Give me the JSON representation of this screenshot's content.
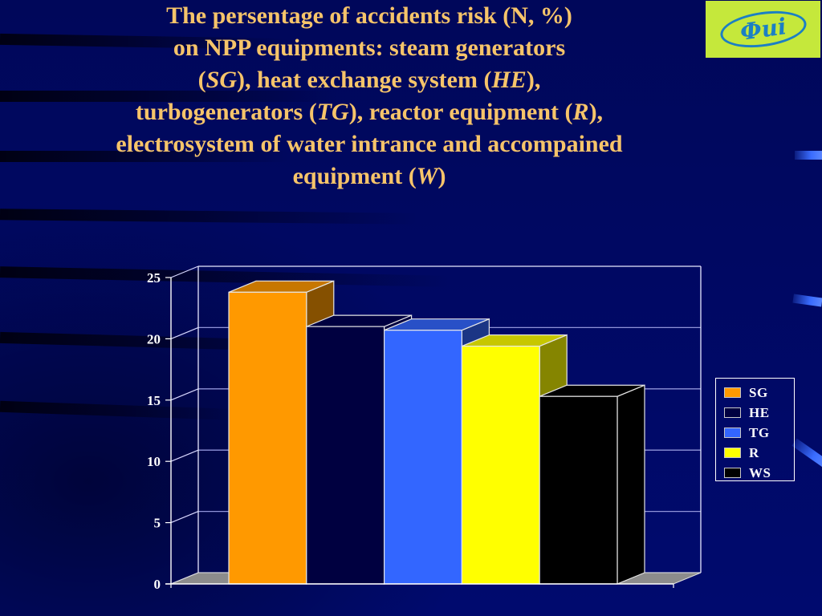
{
  "slide": {
    "title_lines": [
      [
        {
          "t": "The persentage of accidents risk (N, %)",
          "i": false
        }
      ],
      [
        {
          "t": "on NPP equipments: steam generators",
          "i": false
        }
      ],
      [
        {
          "t": "(",
          "i": false
        },
        {
          "t": "SG",
          "i": true
        },
        {
          "t": "), heat exchange system (",
          "i": false
        },
        {
          "t": "HE",
          "i": true
        },
        {
          "t": "),",
          "i": false
        }
      ],
      [
        {
          "t": "turbogenerators (",
          "i": false
        },
        {
          "t": "TG",
          "i": true
        },
        {
          "t": "), reactor equipment (",
          "i": false
        },
        {
          "t": "R",
          "i": true
        },
        {
          "t": "),",
          "i": false
        }
      ],
      [
        {
          "t": "electrosystem of water intrance and accompained",
          "i": false
        }
      ],
      [
        {
          "t": "equipment (",
          "i": false
        },
        {
          "t": "W",
          "i": true
        },
        {
          "t": ")",
          "i": false
        }
      ]
    ],
    "logo_text": "Фиі",
    "colors": {
      "background": "#000a6e",
      "title": "#f6c46a",
      "logo_bg": "#c5e83b",
      "logo_fg": "#1c7fc4"
    }
  },
  "chart_data": {
    "type": "bar",
    "style": "3d-clustered-column",
    "title": "The persentage of accidents risk (N, %) on NPP equipments: steam generators (SG), heat exchange system (HE), turbogenerators (TG), reactor equipment (R), electrosystem of water intrance and accompained equipment (W)",
    "xlabel": "",
    "ylabel": "",
    "categories": [
      "SG",
      "HE",
      "TG",
      "R",
      "WS"
    ],
    "series": [
      {
        "name": "SG",
        "values": [
          23.8
        ],
        "color": "#ff9900"
      },
      {
        "name": "HE",
        "values": [
          21.0
        ],
        "color": "#000040"
      },
      {
        "name": "TG",
        "values": [
          20.7
        ],
        "color": "#3366ff"
      },
      {
        "name": "R",
        "values": [
          19.4
        ],
        "color": "#ffff00"
      },
      {
        "name": "WS",
        "values": [
          15.3
        ],
        "color": "#000000"
      }
    ],
    "values": [
      23.8,
      21.0,
      20.7,
      19.4,
      15.3
    ],
    "ylim": [
      0,
      25
    ],
    "yticks": [
      "0",
      "5",
      "10",
      "15",
      "20",
      "25"
    ],
    "grid": true,
    "legend_position": "right"
  }
}
